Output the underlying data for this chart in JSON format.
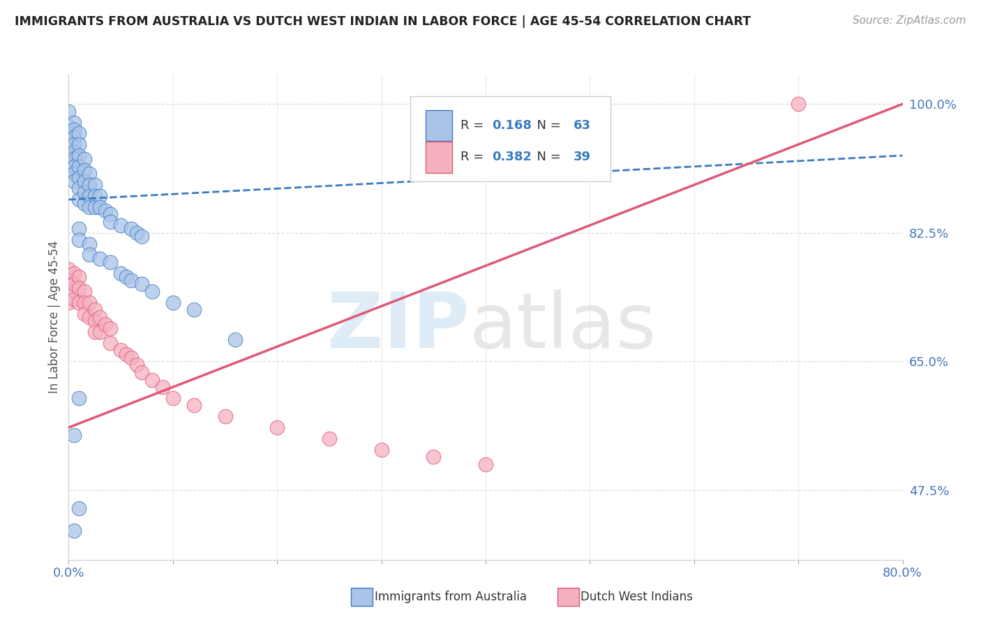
{
  "title": "IMMIGRANTS FROM AUSTRALIA VS DUTCH WEST INDIAN IN LABOR FORCE | AGE 45-54 CORRELATION CHART",
  "source": "Source: ZipAtlas.com",
  "ylabel": "In Labor Force | Age 45-54",
  "xmin": 0.0,
  "xmax": 0.8,
  "ymin": 0.38,
  "ymax": 1.04,
  "ytick_labels_right": [
    "47.5%",
    "65.0%",
    "82.5%",
    "100.0%"
  ],
  "ytick_values_right": [
    0.475,
    0.65,
    0.825,
    1.0
  ],
  "blue_R": "0.168",
  "blue_N": "63",
  "pink_R": "0.382",
  "pink_N": "39",
  "legend_label_blue": "Immigrants from Australia",
  "legend_label_pink": "Dutch West Indians",
  "blue_color": "#aac4e8",
  "pink_color": "#f5b0c0",
  "trend_blue_color": "#3a7bbf",
  "trend_pink_color": "#e05878",
  "blue_scatter_x": [
    0.0,
    0.0,
    0.0,
    0.0,
    0.0,
    0.0,
    0.0,
    0.0,
    0.005,
    0.005,
    0.005,
    0.005,
    0.005,
    0.005,
    0.005,
    0.005,
    0.005,
    0.01,
    0.01,
    0.01,
    0.01,
    0.01,
    0.01,
    0.01,
    0.015,
    0.015,
    0.015,
    0.015,
    0.015,
    0.02,
    0.02,
    0.02,
    0.02,
    0.025,
    0.025,
    0.025,
    0.03,
    0.03,
    0.035,
    0.04,
    0.04,
    0.05,
    0.06,
    0.065,
    0.07,
    0.01,
    0.01,
    0.02,
    0.02,
    0.03,
    0.04,
    0.05,
    0.055,
    0.06,
    0.07,
    0.08,
    0.1,
    0.12,
    0.16,
    0.005,
    0.005,
    0.01,
    0.01
  ],
  "blue_scatter_y": [
    0.99,
    0.97,
    0.96,
    0.95,
    0.94,
    0.93,
    0.92,
    0.91,
    0.975,
    0.965,
    0.955,
    0.945,
    0.935,
    0.925,
    0.915,
    0.905,
    0.895,
    0.96,
    0.945,
    0.93,
    0.915,
    0.9,
    0.885,
    0.87,
    0.925,
    0.91,
    0.895,
    0.88,
    0.865,
    0.905,
    0.89,
    0.875,
    0.86,
    0.89,
    0.875,
    0.86,
    0.875,
    0.86,
    0.855,
    0.85,
    0.84,
    0.835,
    0.83,
    0.825,
    0.82,
    0.83,
    0.815,
    0.81,
    0.795,
    0.79,
    0.785,
    0.77,
    0.765,
    0.76,
    0.755,
    0.745,
    0.73,
    0.72,
    0.68,
    0.55,
    0.42,
    0.6,
    0.45
  ],
  "pink_scatter_x": [
    0.0,
    0.0,
    0.0,
    0.0,
    0.005,
    0.005,
    0.005,
    0.01,
    0.01,
    0.01,
    0.015,
    0.015,
    0.015,
    0.02,
    0.02,
    0.025,
    0.025,
    0.025,
    0.03,
    0.03,
    0.035,
    0.04,
    0.04,
    0.05,
    0.055,
    0.06,
    0.065,
    0.07,
    0.08,
    0.09,
    0.1,
    0.12,
    0.15,
    0.2,
    0.25,
    0.3,
    0.35,
    0.4,
    0.7
  ],
  "pink_scatter_y": [
    0.775,
    0.76,
    0.745,
    0.73,
    0.77,
    0.755,
    0.735,
    0.765,
    0.75,
    0.73,
    0.745,
    0.73,
    0.715,
    0.73,
    0.71,
    0.72,
    0.705,
    0.69,
    0.71,
    0.69,
    0.7,
    0.695,
    0.675,
    0.665,
    0.66,
    0.655,
    0.645,
    0.635,
    0.625,
    0.615,
    0.6,
    0.59,
    0.575,
    0.56,
    0.545,
    0.53,
    0.52,
    0.51,
    1.0
  ],
  "blue_trend_x": [
    0.0,
    0.8
  ],
  "blue_trend_y": [
    0.87,
    0.93
  ],
  "pink_trend_x": [
    0.0,
    0.8
  ],
  "pink_trend_y": [
    0.56,
    1.0
  ],
  "xtick_positions": [
    0.0,
    0.1,
    0.2,
    0.3,
    0.4,
    0.5,
    0.6,
    0.7,
    0.8
  ],
  "grid_color": "#dddddd",
  "spine_color": "#cccccc"
}
